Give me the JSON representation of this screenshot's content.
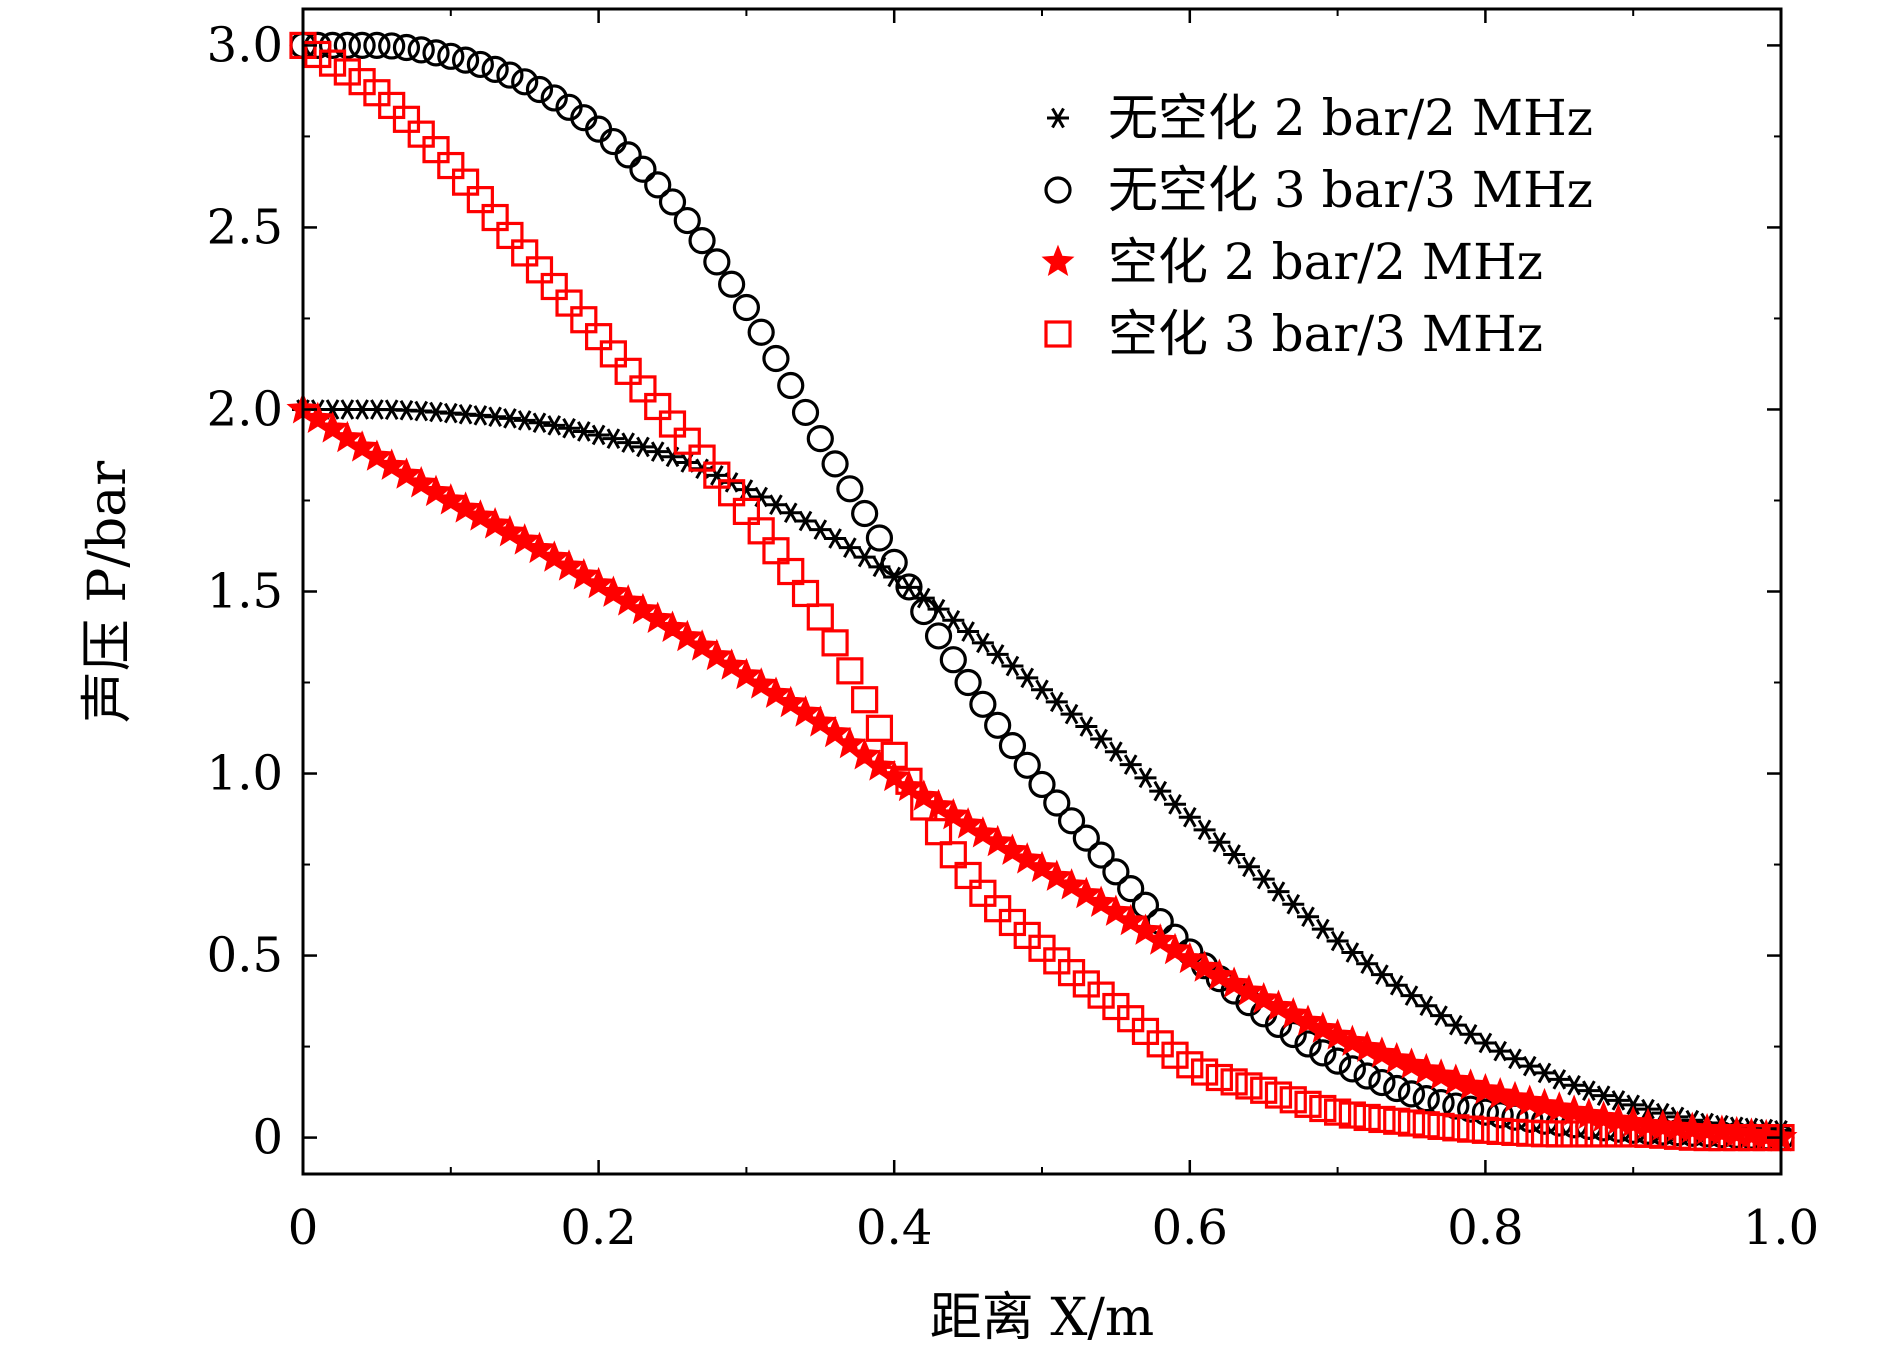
{
  "chart_data": {
    "type": "scatter",
    "title": "",
    "xlabel": "距离 X/m",
    "ylabel": "声压 P/bar",
    "xlim": [
      0,
      1.0
    ],
    "ylim": [
      -0.1,
      3.1
    ],
    "x_ticks": [
      0,
      0.2,
      0.4,
      0.6,
      0.8,
      1.0
    ],
    "x_tick_labels": [
      "0",
      "0.2",
      "0.4",
      "0.6",
      "0.8",
      "1.0"
    ],
    "y_ticks": [
      0,
      0.5,
      1.0,
      1.5,
      2.0,
      2.5,
      3.0
    ],
    "y_tick_labels": [
      "0",
      "0.5",
      "1.0",
      "1.5",
      "2.0",
      "2.5",
      "3.0"
    ],
    "grid": false,
    "legend_position": "top-right",
    "x": [
      0,
      0.05,
      0.1,
      0.15,
      0.2,
      0.25,
      0.3,
      0.35,
      0.4,
      0.45,
      0.5,
      0.55,
      0.6,
      0.65,
      0.7,
      0.75,
      0.8,
      0.85,
      0.9,
      0.95,
      1.0
    ],
    "series": [
      {
        "name": "无空化 2 bar/2 MHz",
        "marker": "asterisk",
        "color": "#000000",
        "values": [
          2.0,
          2.0,
          1.99,
          1.97,
          1.93,
          1.87,
          1.78,
          1.67,
          1.54,
          1.39,
          1.23,
          1.06,
          0.88,
          0.71,
          0.54,
          0.39,
          0.26,
          0.16,
          0.09,
          0.04,
          0.02
        ]
      },
      {
        "name": "无空化 3 bar/3 MHz",
        "marker": "circle",
        "color": "#000000",
        "values": [
          3.0,
          3.0,
          2.97,
          2.9,
          2.77,
          2.57,
          2.28,
          1.92,
          1.58,
          1.25,
          0.97,
          0.73,
          0.51,
          0.34,
          0.21,
          0.12,
          0.07,
          0.04,
          0.02,
          0.01,
          0.0
        ]
      },
      {
        "name": "空化 2 bar/2 MHz",
        "marker": "star",
        "color": "#ff0000",
        "values": [
          2.0,
          1.87,
          1.75,
          1.64,
          1.52,
          1.4,
          1.27,
          1.14,
          0.99,
          0.86,
          0.74,
          0.62,
          0.49,
          0.38,
          0.28,
          0.2,
          0.13,
          0.08,
          0.04,
          0.02,
          0.0
        ]
      },
      {
        "name": "空化 3 bar/3 MHz",
        "marker": "square",
        "color": "#ff0000",
        "values": [
          3.0,
          2.87,
          2.67,
          2.43,
          2.2,
          1.96,
          1.72,
          1.43,
          1.05,
          0.72,
          0.52,
          0.36,
          0.2,
          0.13,
          0.07,
          0.04,
          0.02,
          0.01,
          0.01,
          0.0,
          0.0
        ]
      }
    ]
  }
}
